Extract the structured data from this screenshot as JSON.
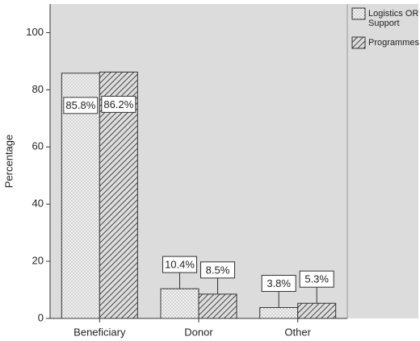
{
  "chart_data": {
    "type": "bar",
    "y_label": "Percentage",
    "categories": [
      "Beneficiary",
      "Donor",
      "Other"
    ],
    "series": [
      {
        "name": "Logistics OR Support",
        "color": "#ffffff",
        "pattern": "dots",
        "values": [
          85.8,
          10.4,
          3.8
        ],
        "value_labels": [
          "85.8%",
          "10.4%",
          "3.8%"
        ]
      },
      {
        "name": "Programmes",
        "color": "#ffffff",
        "pattern": "hatch",
        "values": [
          86.2,
          8.5,
          5.3
        ],
        "value_labels": [
          "86.2%",
          "8.5%",
          "5.3%"
        ]
      }
    ],
    "ylim": [
      0,
      110
    ],
    "yticks": [
      0,
      20,
      40,
      60,
      80,
      100
    ],
    "legend": "top-right"
  }
}
